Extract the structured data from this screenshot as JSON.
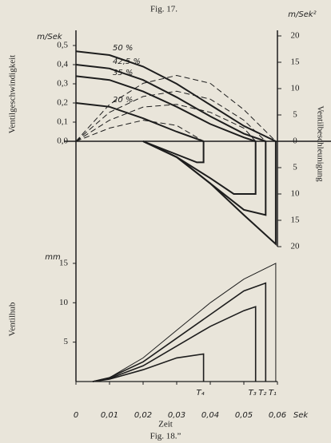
{
  "chart_data": [
    {
      "type": "line",
      "title": "Fig. 17.",
      "xlim": [
        0,
        0.06
      ],
      "ylim": [
        0,
        0.55
      ],
      "yticks": [
        {
          "value": 0,
          "label": "0,0"
        },
        {
          "value": 0.1,
          "label": "0,1"
        },
        {
          "value": 0.2,
          "label": "0,2"
        },
        {
          "value": 0.3,
          "label": "0,3"
        },
        {
          "value": 0.4,
          "label": "0,4"
        },
        {
          "value": 0.5,
          "label": "0,5"
        }
      ],
      "y_unit": "m/Sek",
      "y_axis_title": "Ventilgeschwindigkeit",
      "y2lim": [
        -20,
        20
      ],
      "y2ticks": [
        20,
        15,
        10,
        5,
        0,
        {
          "value": -5,
          "label": "5"
        },
        {
          "value": -10,
          "label": "10"
        },
        {
          "value": -15,
          "label": "15"
        },
        {
          "value": -20,
          "label": "20"
        }
      ],
      "y2_unit": "m/Sek²",
      "y2_axis_title": "Ventilbeschleunigung",
      "series": [
        {
          "name": "50 %",
          "color": "#1d1d1d",
          "style": "solid",
          "width": 2,
          "x": [
            0,
            0.01,
            0.02,
            0.03,
            0.04,
            0.05,
            0.0595
          ],
          "values": [
            0.47,
            0.45,
            0.39,
            0.3,
            0.19,
            0.08,
            0
          ]
        },
        {
          "name": "42,5 %",
          "color": "#1d1d1d",
          "style": "solid",
          "width": 2,
          "x": [
            0,
            0.01,
            0.02,
            0.03,
            0.04,
            0.05,
            0.0565
          ],
          "values": [
            0.4,
            0.38,
            0.32,
            0.23,
            0.13,
            0.04,
            0
          ]
        },
        {
          "name": "35 %",
          "color": "#1d1d1d",
          "style": "solid",
          "width": 2,
          "x": [
            0,
            0.01,
            0.02,
            0.03,
            0.04,
            0.05,
            0.0535
          ],
          "values": [
            0.34,
            0.32,
            0.26,
            0.18,
            0.09,
            0.02,
            0
          ]
        },
        {
          "name": "20 %",
          "color": "#1d1d1d",
          "style": "solid",
          "width": 2,
          "x": [
            0,
            0.01,
            0.02,
            0.03,
            0.038
          ],
          "values": [
            0.2,
            0.18,
            0.12,
            0.05,
            0
          ]
        },
        {
          "axis": "y2",
          "color": "#1d1d1d",
          "style": "dashed",
          "width": 1,
          "x": [
            0,
            0.01,
            0.02,
            0.03,
            0.04,
            0.05,
            0.0595
          ],
          "values": [
            0,
            7,
            11,
            12.5,
            11,
            6,
            0
          ]
        },
        {
          "axis": "y2",
          "color": "#1d1d1d",
          "style": "dashed",
          "width": 1,
          "x": [
            0,
            0.01,
            0.02,
            0.03,
            0.04,
            0.05,
            0.0565
          ],
          "values": [
            0,
            5.5,
            8.5,
            9.5,
            8,
            4,
            0
          ]
        },
        {
          "axis": "y2",
          "color": "#1d1d1d",
          "style": "dashed",
          "width": 1,
          "x": [
            0,
            0.01,
            0.02,
            0.03,
            0.04,
            0.05,
            0.0535
          ],
          "values": [
            0,
            4,
            6.5,
            7,
            5.5,
            2.5,
            0
          ]
        },
        {
          "axis": "y2",
          "color": "#1d1d1d",
          "style": "dashed",
          "width": 1,
          "x": [
            0,
            0.01,
            0.02,
            0.03,
            0.038
          ],
          "values": [
            0,
            2.5,
            4,
            3,
            0
          ]
        },
        {
          "axis": "y2",
          "color": "#1d1d1d",
          "style": "solid",
          "width": 2,
          "x": [
            0.02,
            0.03,
            0.04,
            0.05,
            0.0595,
            0.0595
          ],
          "values": [
            0,
            -3,
            -8,
            -14,
            -19.5,
            0
          ]
        },
        {
          "axis": "y2",
          "color": "#1d1d1d",
          "style": "solid",
          "width": 2,
          "x": [
            0.02,
            0.03,
            0.04,
            0.05,
            0.0565,
            0.0565
          ],
          "values": [
            0,
            -3,
            -8,
            -13,
            -14,
            0
          ]
        },
        {
          "axis": "y2",
          "color": "#1d1d1d",
          "style": "solid",
          "width": 2,
          "x": [
            0.02,
            0.03,
            0.04,
            0.047,
            0.0535,
            0.0535
          ],
          "values": [
            0,
            -3,
            -7,
            -10,
            -10,
            0
          ]
        },
        {
          "axis": "y2",
          "color": "#1d1d1d",
          "style": "solid",
          "width": 2,
          "x": [
            0.02,
            0.03,
            0.036,
            0.038,
            0.038
          ],
          "values": [
            0,
            -2.5,
            -4,
            -4,
            0
          ]
        }
      ]
    },
    {
      "type": "line",
      "title": "Fig. 18.”",
      "x_label": "Zeit",
      "x_unit": "Sek",
      "xlim": [
        0,
        0.06
      ],
      "xticks": [
        0,
        {
          "value": 0.01,
          "label": "0,01"
        },
        {
          "value": 0.02,
          "label": "0,02"
        },
        {
          "value": 0.03,
          "label": "0,03"
        },
        {
          "value": 0.04,
          "label": "0,04"
        },
        {
          "value": 0.05,
          "label": "0,05"
        },
        {
          "value": 0.06,
          "label": "0,06"
        }
      ],
      "ylim": [
        0,
        15.5
      ],
      "yticks": [
        5,
        10,
        15
      ],
      "y_unit": "mm",
      "y_axis_title": "Ventilhub",
      "markers": [
        {
          "value": 0.038,
          "label": "T₄"
        },
        {
          "value": 0.0535,
          "label": "T₃"
        },
        {
          "value": 0.0565,
          "label": "T₂"
        },
        {
          "value": 0.0595,
          "label": "T₁"
        }
      ],
      "series": [
        {
          "color": "#1d1d1d",
          "style": "solid",
          "width": 1,
          "x": [
            0.005,
            0.01,
            0.02,
            0.03,
            0.04,
            0.05,
            0.0595,
            0.0595
          ],
          "values": [
            0,
            0.5,
            3,
            6.5,
            10,
            13,
            15,
            0
          ]
        },
        {
          "color": "#1d1d1d",
          "style": "solid",
          "width": 1.6,
          "x": [
            0.005,
            0.01,
            0.02,
            0.03,
            0.04,
            0.05,
            0.0565,
            0.0565
          ],
          "values": [
            0,
            0.5,
            2.5,
            5.5,
            8.5,
            11.5,
            12.5,
            0
          ]
        },
        {
          "color": "#1d1d1d",
          "style": "solid",
          "width": 1.6,
          "x": [
            0.005,
            0.01,
            0.02,
            0.03,
            0.04,
            0.05,
            0.0535,
            0.0535
          ],
          "values": [
            0,
            0.4,
            2,
            4.5,
            7,
            9,
            9.5,
            0
          ]
        },
        {
          "color": "#1d1d1d",
          "style": "solid",
          "width": 1.6,
          "x": [
            0.005,
            0.01,
            0.02,
            0.03,
            0.038,
            0.038
          ],
          "values": [
            0,
            0.3,
            1.5,
            3,
            3.5,
            0
          ]
        }
      ]
    }
  ]
}
